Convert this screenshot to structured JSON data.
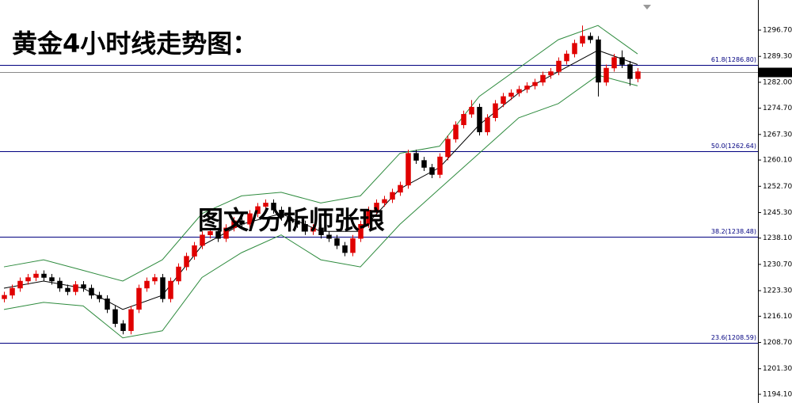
{
  "chart_data": {
    "type": "candlestick",
    "title": "黄金4小时线走势图：",
    "annotation": "图文/分析师张琅",
    "open": [
      1221,
      1222,
      1224,
      1226,
      1227,
      1228,
      1227,
      1226,
      1224,
      1223,
      1225,
      1224,
      1222,
      1221,
      1218,
      1214,
      1212,
      1218,
      1224,
      1226,
      1227,
      1221,
      1226,
      1230,
      1233,
      1236,
      1239,
      1240,
      1238,
      1241,
      1243,
      1242,
      1245,
      1247,
      1248,
      1246,
      1244,
      1243,
      1242,
      1240,
      1241,
      1239,
      1238,
      1236,
      1234,
      1238,
      1242,
      1246,
      1248,
      1249,
      1251,
      1253,
      1262,
      1260,
      1258,
      1256,
      1261,
      1266,
      1270,
      1273,
      1275,
      1268,
      1272,
      1276,
      1278,
      1279,
      1280,
      1281,
      1282,
      1284,
      1285,
      1288,
      1290,
      1293,
      1295,
      1294,
      1282,
      1286,
      1289,
      1287,
      1283
    ],
    "high": [
      1223,
      1225,
      1227,
      1228,
      1229,
      1229,
      1228,
      1227,
      1225,
      1226,
      1226,
      1225,
      1223,
      1222,
      1219,
      1215,
      1219,
      1225,
      1227,
      1228,
      1228,
      1227,
      1231,
      1234,
      1237,
      1240,
      1241,
      1241,
      1242,
      1244,
      1244,
      1246,
      1248,
      1249,
      1249,
      1247,
      1245,
      1244,
      1243,
      1242,
      1242,
      1240,
      1239,
      1237,
      1239,
      1243,
      1247,
      1249,
      1250,
      1252,
      1254,
      1263,
      1263,
      1261,
      1259,
      1262,
      1267,
      1271,
      1274,
      1277,
      1276,
      1273,
      1277,
      1279,
      1280,
      1281,
      1282,
      1283,
      1285,
      1286,
      1289,
      1291,
      1294,
      1298,
      1296,
      1295,
      1287,
      1290,
      1291,
      1288,
      1286
    ],
    "low": [
      1220,
      1221,
      1223,
      1225,
      1226,
      1226,
      1225,
      1223,
      1222,
      1222,
      1223,
      1221,
      1220,
      1217,
      1213,
      1211,
      1211,
      1217,
      1223,
      1225,
      1220,
      1220,
      1225,
      1229,
      1232,
      1235,
      1238,
      1237,
      1237,
      1240,
      1241,
      1241,
      1244,
      1246,
      1245,
      1243,
      1242,
      1241,
      1239,
      1239,
      1238,
      1237,
      1235,
      1233,
      1233,
      1237,
      1241,
      1245,
      1247,
      1248,
      1250,
      1252,
      1259,
      1257,
      1255,
      1255,
      1260,
      1265,
      1269,
      1272,
      1267,
      1267,
      1271,
      1275,
      1277,
      1278,
      1279,
      1280,
      1281,
      1283,
      1284,
      1287,
      1289,
      1292,
      1293,
      1278,
      1281,
      1285,
      1286,
      1281,
      1282
    ],
    "close": [
      1222,
      1224,
      1226,
      1227,
      1228,
      1227,
      1226,
      1224,
      1223,
      1225,
      1224,
      1222,
      1221,
      1218,
      1214,
      1212,
      1218,
      1224,
      1226,
      1227,
      1221,
      1226,
      1230,
      1233,
      1236,
      1239,
      1240,
      1238,
      1241,
      1243,
      1242,
      1245,
      1247,
      1248,
      1246,
      1244,
      1243,
      1242,
      1240,
      1241,
      1239,
      1238,
      1236,
      1234,
      1238,
      1242,
      1246,
      1248,
      1249,
      1251,
      1253,
      1262,
      1260,
      1258,
      1256,
      1261,
      1266,
      1270,
      1273,
      1275,
      1268,
      1272,
      1276,
      1278,
      1279,
      1280,
      1281,
      1282,
      1284,
      1285,
      1288,
      1290,
      1293,
      1295,
      1294,
      1282,
      1286,
      1289,
      1287,
      1283,
      1284.99
    ],
    "up_color": "#e00000",
    "down_color": "#000000",
    "band_x": [
      0,
      5,
      10,
      15,
      20,
      25,
      30,
      35,
      40,
      45,
      50,
      55,
      60,
      65,
      70,
      75,
      80
    ],
    "series": [
      {
        "color": "#2e8b3e",
        "values": [
          1230,
          1232,
          1229,
          1226,
          1232,
          1245,
          1250,
          1251,
          1248,
          1250,
          1262,
          1264,
          1278,
          1286,
          1294,
          1298,
          1290
        ]
      },
      {
        "color": "#000000",
        "values": [
          1224,
          1226,
          1224,
          1218,
          1222,
          1236,
          1242,
          1245,
          1240,
          1240,
          1252,
          1258,
          1270,
          1279,
          1285,
          1291,
          1287
        ]
      },
      {
        "color": "#2e8b3e",
        "values": [
          1218,
          1220,
          1219,
          1210,
          1212,
          1227,
          1234,
          1239,
          1232,
          1230,
          1242,
          1252,
          1262,
          1272,
          1276,
          1284,
          1281
        ]
      }
    ],
    "levels": [
      {
        "value": 1286.8,
        "label": "61.8(1286.80)"
      },
      {
        "value": 1262.64,
        "label": "50.0(1262.64)"
      },
      {
        "value": 1238.48,
        "label": "38.2(1238.48)"
      },
      {
        "value": 1208.59,
        "label": "23.6(1208.59)"
      }
    ],
    "level_color": "#000080",
    "last_price": {
      "value": 1284.99,
      "label": "1284.99"
    },
    "ylim": [
      1191.65,
      1305.18
    ],
    "yticks": [
      {
        "value": 1296.7,
        "label": "1296.70"
      },
      {
        "value": 1289.3,
        "label": "1289.30"
      },
      {
        "value": 1282,
        "label": "1282.00"
      },
      {
        "value": 1274.7,
        "label": "1274.70"
      },
      {
        "value": 1267.3,
        "label": "1267.30"
      },
      {
        "value": 1260.1,
        "label": "1260.10"
      },
      {
        "value": 1252.7,
        "label": "1252.70"
      },
      {
        "value": 1245.3,
        "label": "1245.30"
      },
      {
        "value": 1238.1,
        "label": "1238.10"
      },
      {
        "value": 1230.7,
        "label": "1230.70"
      },
      {
        "value": 1223.3,
        "label": "1223.30"
      },
      {
        "value": 1216.1,
        "label": "1216.10"
      },
      {
        "value": 1208.7,
        "label": "1208.70"
      },
      {
        "value": 1201.3,
        "label": "1201.30"
      },
      {
        "value": 1194.1,
        "label": "1194.10"
      }
    ]
  }
}
